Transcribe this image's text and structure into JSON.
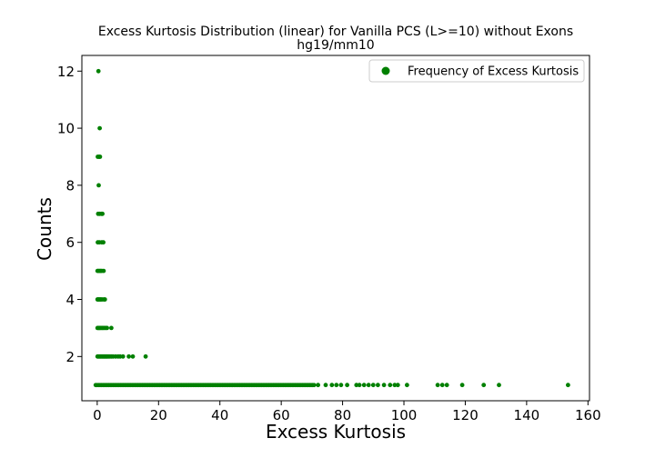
{
  "chart_data": {
    "type": "scatter",
    "title": "Excess Kurtosis Distribution (linear) for Vanilla PCS (L>=10) without Exons",
    "subtitle": "hg19/mm10",
    "xlabel": "Excess Kurtosis",
    "ylabel": "Counts",
    "xlim": [
      -5,
      160.5
    ],
    "ylim": [
      0.45,
      12.55
    ],
    "x_ticks": [
      0,
      20,
      40,
      60,
      80,
      100,
      120,
      140,
      160
    ],
    "y_ticks": [
      2,
      4,
      6,
      8,
      10,
      12
    ],
    "grid": false,
    "legend_position": "top-right",
    "color": "#008000",
    "series": [
      {
        "name": "Frequency of Excess Kurtosis",
        "marker": "circle",
        "points": [
          [
            0.4,
            12
          ],
          [
            0.8,
            10
          ],
          [
            0.2,
            9
          ],
          [
            0.6,
            9
          ],
          [
            0.9,
            9
          ],
          [
            0.5,
            8
          ],
          [
            0.3,
            7
          ],
          [
            0.8,
            7
          ],
          [
            1.4,
            7
          ],
          [
            1.7,
            7
          ],
          [
            0.2,
            6
          ],
          [
            0.7,
            6
          ],
          [
            1.5,
            6
          ],
          [
            2.0,
            6
          ],
          [
            0.1,
            5
          ],
          [
            0.4,
            5
          ],
          [
            0.8,
            5
          ],
          [
            1.1,
            5
          ],
          [
            1.5,
            5
          ],
          [
            2.1,
            5
          ],
          [
            0.1,
            4
          ],
          [
            0.3,
            4
          ],
          [
            0.6,
            4
          ],
          [
            0.9,
            4
          ],
          [
            1.2,
            4
          ],
          [
            1.6,
            4
          ],
          [
            2.2,
            4
          ],
          [
            2.5,
            4
          ],
          [
            0.1,
            3
          ],
          [
            0.4,
            3
          ],
          [
            0.7,
            3
          ],
          [
            1.0,
            3
          ],
          [
            1.4,
            3
          ],
          [
            1.8,
            3
          ],
          [
            2.2,
            3
          ],
          [
            2.7,
            3
          ],
          [
            3.2,
            3
          ],
          [
            4.6,
            3
          ],
          [
            0.1,
            2
          ],
          [
            0.4,
            2
          ],
          [
            0.7,
            2
          ],
          [
            1.0,
            2
          ],
          [
            1.3,
            2
          ],
          [
            1.6,
            2
          ],
          [
            1.9,
            2
          ],
          [
            2.2,
            2
          ],
          [
            2.5,
            2
          ],
          [
            2.8,
            2
          ],
          [
            3.1,
            2
          ],
          [
            3.4,
            2
          ],
          [
            3.8,
            2
          ],
          [
            4.2,
            2
          ],
          [
            4.7,
            2
          ],
          [
            5.2,
            2
          ],
          [
            6.0,
            2
          ],
          [
            6.8,
            2
          ],
          [
            7.5,
            2
          ],
          [
            8.4,
            2
          ],
          [
            10.3,
            2
          ],
          [
            11.6,
            2
          ],
          [
            15.8,
            2
          ],
          [
            72.0,
            1
          ],
          [
            74.5,
            1
          ],
          [
            76.5,
            1
          ],
          [
            78.0,
            1
          ],
          [
            79.5,
            1
          ],
          [
            81.5,
            1
          ],
          [
            84.5,
            1
          ],
          [
            85.5,
            1
          ],
          [
            87.0,
            1
          ],
          [
            88.5,
            1
          ],
          [
            90.0,
            1
          ],
          [
            91.5,
            1
          ],
          [
            93.5,
            1
          ],
          [
            95.5,
            1
          ],
          [
            97.0,
            1
          ],
          [
            98.0,
            1
          ],
          [
            101.0,
            1
          ],
          [
            111.0,
            1
          ],
          [
            112.5,
            1
          ],
          [
            114.0,
            1
          ],
          [
            119.0,
            1
          ],
          [
            126.0,
            1
          ],
          [
            131.0,
            1
          ],
          [
            153.5,
            1
          ]
        ],
        "dense_run": {
          "y": 1,
          "x_start": -0.5,
          "x_end": 71.0
        }
      }
    ]
  }
}
